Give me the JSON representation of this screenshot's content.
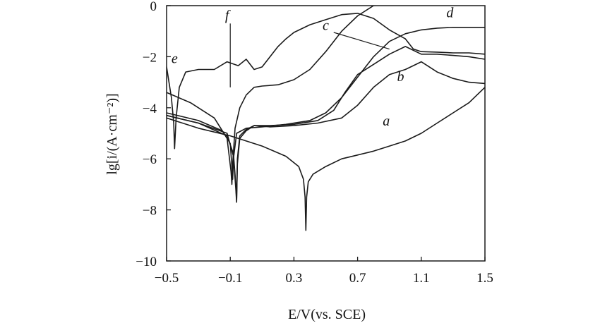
{
  "chart_data": {
    "type": "line",
    "xlabel": "E/V(vs. SCE)",
    "ylabel": "lg[i/(A·cm⁻²)]",
    "xlim": [
      -0.5,
      1.5
    ],
    "ylim": [
      -10,
      0
    ],
    "xticks": [
      -0.5,
      -0.1,
      0.3,
      0.7,
      1.1,
      1.5
    ],
    "yticks": [
      0,
      -2,
      -4,
      -6,
      -8,
      -10
    ],
    "xtick_labels": [
      "−0.5",
      "−0.1",
      "0.3",
      "0.7",
      "1.1",
      "1.5"
    ],
    "ytick_labels": [
      "0",
      "−2",
      "−4",
      "−6",
      "−8",
      "−10"
    ],
    "grid": false,
    "legend": "none",
    "series": [
      {
        "name": "a",
        "label_at": [
          0.88,
          -4.7
        ],
        "x": [
          -0.5,
          -0.3,
          -0.1,
          0.1,
          0.25,
          0.33,
          0.36,
          0.37,
          0.375,
          0.38,
          0.39,
          0.42,
          0.5,
          0.6,
          0.7,
          0.8,
          0.9,
          1.0,
          1.1,
          1.2,
          1.3,
          1.4,
          1.45,
          1.5
        ],
        "y": [
          -4.4,
          -4.8,
          -5.1,
          -5.5,
          -5.9,
          -6.3,
          -6.8,
          -7.5,
          -8.8,
          -7.5,
          -6.9,
          -6.6,
          -6.3,
          -6.0,
          -5.85,
          -5.7,
          -5.5,
          -5.3,
          -5.0,
          -4.6,
          -4.2,
          -3.8,
          -3.5,
          -3.2
        ]
      },
      {
        "name": "b",
        "label_at": [
          0.97,
          -2.95
        ],
        "x": [
          -0.5,
          -0.3,
          -0.12,
          -0.08,
          -0.065,
          -0.06,
          -0.055,
          -0.04,
          0.0,
          0.05,
          0.15,
          0.3,
          0.45,
          0.6,
          0.7,
          0.8,
          0.9,
          1.0,
          1.05,
          1.1,
          1.2,
          1.3,
          1.4,
          1.5
        ],
        "y": [
          -4.3,
          -4.6,
          -5.1,
          -5.8,
          -7.0,
          -7.6,
          -6.2,
          -5.2,
          -4.9,
          -4.7,
          -4.75,
          -4.7,
          -4.6,
          -4.4,
          -3.9,
          -3.2,
          -2.7,
          -2.5,
          -2.35,
          -2.2,
          -2.6,
          -2.85,
          -3.0,
          -3.05
        ]
      },
      {
        "name": "c",
        "label_at": [
          0.5,
          -0.95
        ],
        "x": [
          -0.5,
          -0.3,
          -0.12,
          -0.08,
          -0.065,
          -0.06,
          -0.055,
          -0.04,
          0.0,
          0.05,
          0.15,
          0.3,
          0.45,
          0.55,
          0.62,
          0.7,
          0.8,
          0.9,
          1.0,
          1.1,
          1.2,
          1.3,
          1.4,
          1.5
        ],
        "y": [
          -4.3,
          -4.6,
          -5.0,
          -5.9,
          -7.2,
          -7.7,
          -6.0,
          -5.1,
          -4.85,
          -4.7,
          -4.7,
          -4.65,
          -4.5,
          -4.1,
          -3.4,
          -2.7,
          -2.3,
          -1.9,
          -1.6,
          -1.9,
          -1.9,
          -1.95,
          -2.0,
          -2.1
        ]
      },
      {
        "name": "d",
        "label_at": [
          1.28,
          -0.45
        ],
        "x": [
          -0.5,
          -0.3,
          -0.15,
          -0.1,
          -0.09,
          -0.085,
          -0.08,
          -0.06,
          0.0,
          0.1,
          0.25,
          0.4,
          0.5,
          0.6,
          0.7,
          0.8,
          0.9,
          1.0,
          1.1,
          1.2,
          1.3,
          1.4,
          1.5
        ],
        "y": [
          -4.2,
          -4.5,
          -4.9,
          -5.4,
          -6.3,
          -6.8,
          -6.0,
          -5.0,
          -4.8,
          -4.75,
          -4.65,
          -4.5,
          -4.2,
          -3.6,
          -2.8,
          -2.0,
          -1.4,
          -1.1,
          -0.95,
          -0.88,
          -0.85,
          -0.85,
          -0.85
        ]
      },
      {
        "name": "e",
        "label_at": [
          -0.45,
          -2.25
        ],
        "x": [
          -0.5,
          -0.47,
          -0.455,
          -0.45,
          -0.44,
          -0.42,
          -0.38,
          -0.3,
          -0.2,
          -0.12,
          -0.05,
          0.0,
          0.05,
          0.1,
          0.15,
          0.2,
          0.25,
          0.3,
          0.4,
          0.5,
          0.6,
          0.7,
          0.8,
          0.9,
          1.0,
          1.05,
          1.1,
          1.2,
          1.3,
          1.4,
          1.5
        ],
        "y": [
          -2.4,
          -3.6,
          -4.6,
          -5.6,
          -4.4,
          -3.2,
          -2.6,
          -2.5,
          -2.5,
          -2.2,
          -2.35,
          -2.1,
          -2.5,
          -2.4,
          -2.0,
          -1.6,
          -1.3,
          -1.05,
          -0.75,
          -0.55,
          -0.35,
          -0.3,
          -0.5,
          -0.95,
          -1.3,
          -1.7,
          -1.8,
          -1.82,
          -1.85,
          -1.85,
          -1.9
        ]
      },
      {
        "name": "f",
        "label_at": [
          -0.12,
          -0.55
        ],
        "x": [
          -0.5,
          -0.35,
          -0.2,
          -0.12,
          -0.095,
          -0.09,
          -0.085,
          -0.07,
          -0.04,
          0.0,
          0.05,
          0.1,
          0.2,
          0.3,
          0.4,
          0.5,
          0.6,
          0.7,
          0.8,
          0.9
        ],
        "y": [
          -3.4,
          -3.8,
          -4.4,
          -5.2,
          -6.5,
          -7.0,
          -6.2,
          -4.8,
          -4.0,
          -3.5,
          -3.2,
          -3.15,
          -3.1,
          -2.9,
          -2.5,
          -1.8,
          -1.0,
          -0.4,
          0.0,
          0.05
        ]
      }
    ]
  }
}
